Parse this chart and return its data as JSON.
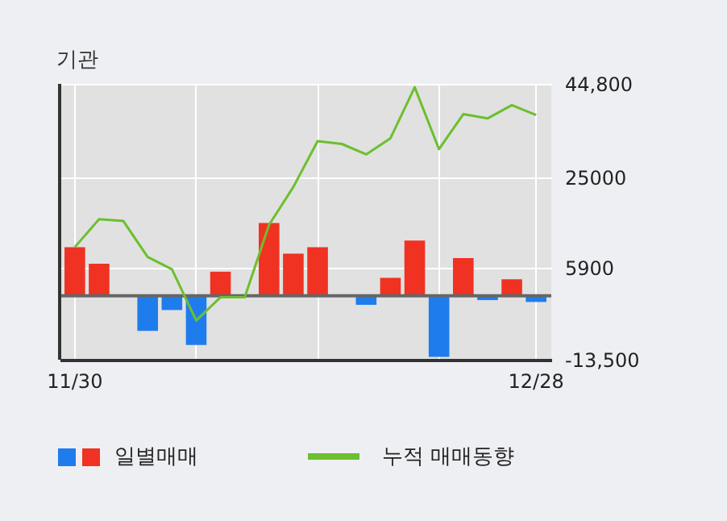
{
  "chart_data": {
    "type": "bar",
    "title": "기관",
    "categories": [
      "11/30",
      null,
      null,
      null,
      null,
      null,
      null,
      null,
      null,
      null,
      null,
      null,
      null,
      null,
      null,
      null,
      null,
      null,
      null,
      "12/28"
    ],
    "series": [
      {
        "name": "일별매매",
        "values": [
          10300,
          6800,
          null,
          -7400,
          -3000,
          -10400,
          5100,
          null,
          15400,
          8900,
          10300,
          null,
          -1900,
          3800,
          11700,
          -12900,
          8000,
          -900,
          3500,
          -1300
        ],
        "colors": [
          "#f03222",
          "#f03222",
          null,
          "#1f7ced",
          "#1f7ced",
          "#1f7ced",
          "#f03222",
          null,
          "#f03222",
          "#f03222",
          "#f03222",
          null,
          "#1f7ced",
          "#f03222",
          "#f03222",
          "#1f7ced",
          "#f03222",
          "#1f7ced",
          "#f03222",
          "#1f7ced"
        ]
      },
      {
        "name": "누적 매매동향",
        "type": "line",
        "color": "#6cbf2e",
        "values": [
          10300,
          16200,
          15800,
          8200,
          5600,
          -5200,
          -300,
          -300,
          15000,
          23000,
          32700,
          32100,
          29900,
          33300,
          44100,
          31000,
          38400,
          37500,
          40300,
          38200
        ]
      }
    ],
    "ylim": [
      -13500,
      44800
    ],
    "yticks": [
      {
        "value": 44800,
        "label": "44,800"
      },
      25000,
      5900,
      {
        "value": -13500,
        "label": "-13,500"
      }
    ],
    "ref_lines": [
      {
        "axis": "y",
        "value": 0,
        "color": "#666666"
      }
    ],
    "grid": true,
    "legend": "bottom"
  }
}
